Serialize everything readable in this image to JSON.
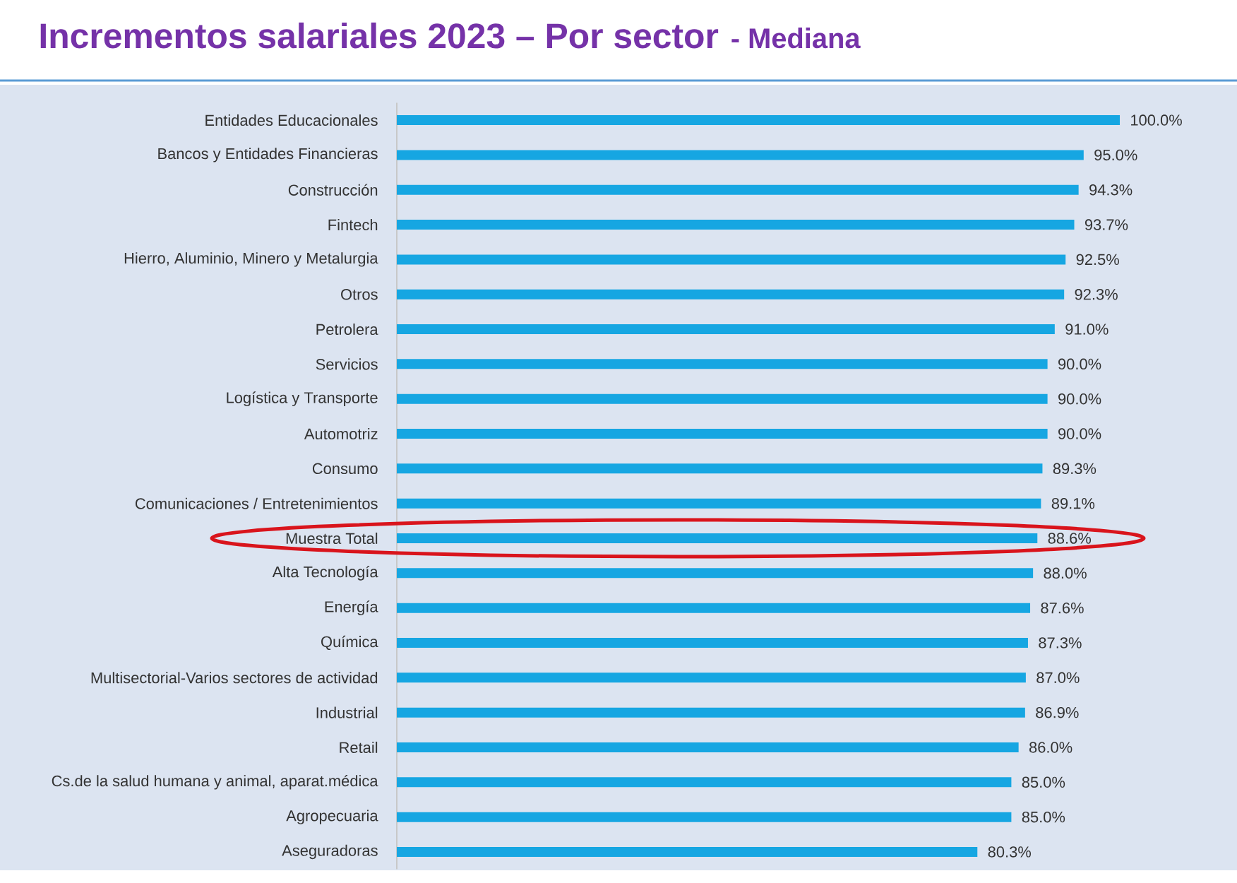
{
  "chart_data": {
    "type": "bar",
    "orientation": "horizontal",
    "title": "Incrementos salariales 2023 – Por sector",
    "subtitle": "- Mediana",
    "categories": [
      "Entidades Educacionales",
      "Bancos y Entidades Financieras",
      "Construcción",
      "Fintech",
      "Hierro, Aluminio, Minero y Metalurgia",
      "Otros",
      "Petrolera",
      "Servicios",
      "Logística y Transporte",
      "Automotriz",
      "Consumo",
      "Comunicaciones / Entretenimientos",
      "Muestra Total",
      "Alta Tecnología",
      "Energía",
      "Química",
      "Multisectorial-Varios sectores de actividad",
      "Industrial",
      "Retail",
      "Cs.de la salud humana y animal, aparat.médica",
      "Agropecuaria",
      "Aseguradoras"
    ],
    "values": [
      100.0,
      95.0,
      94.3,
      93.7,
      92.5,
      92.3,
      91.0,
      90.0,
      90.0,
      90.0,
      89.3,
      89.1,
      88.6,
      88.0,
      87.6,
      87.3,
      87.0,
      86.9,
      86.0,
      85.0,
      85.0,
      80.3
    ],
    "value_labels": [
      "100.0%",
      "95.0%",
      "94.3%",
      "93.7%",
      "92.5%",
      "92.3%",
      "91.0%",
      "90.0%",
      "90.0%",
      "90.0%",
      "89.3%",
      "89.1%",
      "88.6%",
      "88.0%",
      "87.6%",
      "87.3%",
      "87.0%",
      "86.9%",
      "86.0%",
      "85.0%",
      "85.0%",
      "80.3%"
    ],
    "color": "#16a6e2",
    "tick_labels": "y"
  }
}
